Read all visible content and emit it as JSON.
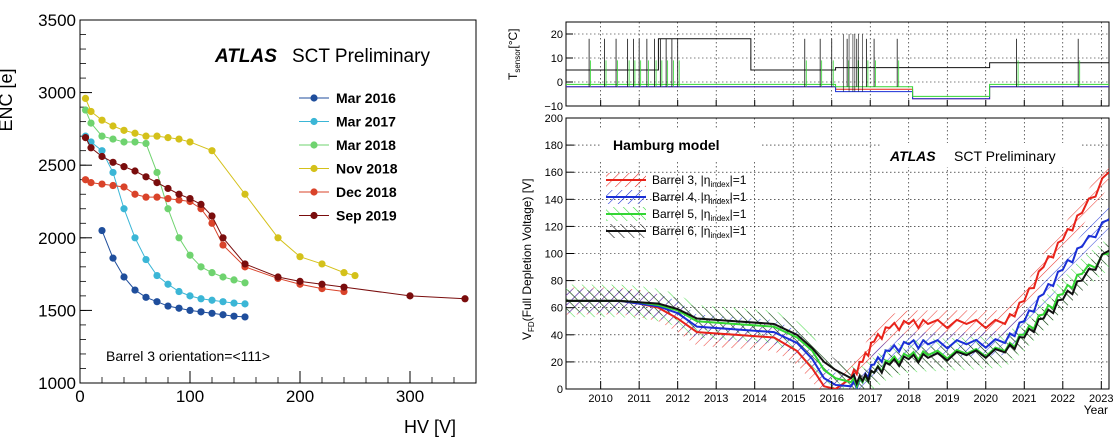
{
  "left": {
    "atlas": "ATLAS",
    "label": "SCT Preliminary",
    "ylabel": "ENC [e]",
    "xlabel": "HV [V]",
    "note": "Barrel 3 orientation=<111>",
    "yticks": [
      "1000",
      "1500",
      "2000",
      "2500",
      "3000",
      "3500"
    ],
    "xticks": [
      "0",
      "100",
      "200",
      "300"
    ]
  },
  "right": {
    "atlas": "ATLAS",
    "label": "SCT Preliminary",
    "model_title": "Hamburg model",
    "top_ylabel_main": "T",
    "top_ylabel_sub": "sensor",
    "top_ylabel_unit": "[°C]",
    "bottom_ylabel_main": "V",
    "bottom_ylabel_sub": "FD",
    "bottom_ylabel_rest": "(Full Depletion Voltage) [V]",
    "xlabel": "Year",
    "top_yticks": [
      "−10",
      "0",
      "10",
      "20"
    ],
    "bottom_yticks": [
      "0",
      "20",
      "40",
      "60",
      "80",
      "100",
      "120",
      "140",
      "160",
      "180",
      "200"
    ],
    "xticks": [
      "2010",
      "2011",
      "2012",
      "2013",
      "2014",
      "2015",
      "2016",
      "2017",
      "2018",
      "2019",
      "2020",
      "2021",
      "2022",
      "2023"
    ],
    "legend": [
      {
        "pre": "Barrel 3, |η",
        "sub": "index",
        "post": "|=1"
      },
      {
        "pre": "Barrel 4, |η",
        "sub": "index",
        "post": "|=1"
      },
      {
        "pre": "Barrel 5, |η",
        "sub": "index",
        "post": "|=1"
      },
      {
        "pre": "Barrel 6, |η",
        "sub": "index",
        "post": "|=1"
      }
    ]
  },
  "chart_data": [
    {
      "type": "line",
      "title": "ATLAS SCT Preliminary",
      "xlabel": "HV [V]",
      "ylabel": "ENC [e]",
      "xlim": [
        0,
        360
      ],
      "ylim": [
        1000,
        3500
      ],
      "annotations": [
        "Barrel 3 orientation=<111>"
      ],
      "legend_position": "upper-right",
      "series": [
        {
          "name": "Mar 2016",
          "color": "#1f4e9c",
          "x": [
            20,
            30,
            40,
            50,
            60,
            70,
            80,
            90,
            100,
            110,
            120,
            130,
            140,
            150
          ],
          "y": [
            2050,
            1860,
            1730,
            1640,
            1590,
            1560,
            1530,
            1515,
            1500,
            1490,
            1480,
            1470,
            1460,
            1455
          ]
        },
        {
          "name": "Mar 2017",
          "color": "#3bb6d6",
          "x": [
            5,
            10,
            20,
            30,
            40,
            50,
            60,
            70,
            80,
            90,
            100,
            110,
            120,
            130,
            140,
            150
          ],
          "y": [
            2700,
            2660,
            2600,
            2450,
            2200,
            2000,
            1850,
            1740,
            1680,
            1630,
            1600,
            1580,
            1570,
            1560,
            1550,
            1545
          ]
        },
        {
          "name": "Mar 2018",
          "color": "#6fd36f",
          "x": [
            5,
            10,
            20,
            30,
            40,
            50,
            60,
            70,
            80,
            90,
            100,
            110,
            120,
            130,
            140,
            150
          ],
          "y": [
            2880,
            2790,
            2700,
            2680,
            2660,
            2660,
            2650,
            2450,
            2200,
            2000,
            1880,
            1800,
            1760,
            1730,
            1710,
            1690
          ]
        },
        {
          "name": "Nov 2018",
          "color": "#d4c11a",
          "x": [
            5,
            10,
            20,
            30,
            40,
            50,
            60,
            70,
            80,
            90,
            100,
            120,
            150,
            180,
            200,
            220,
            240,
            250
          ],
          "y": [
            2960,
            2870,
            2810,
            2770,
            2740,
            2720,
            2700,
            2700,
            2690,
            2680,
            2660,
            2600,
            2300,
            2000,
            1870,
            1820,
            1760,
            1740
          ]
        },
        {
          "name": "Dec 2018",
          "color": "#d9432a",
          "x": [
            5,
            10,
            20,
            30,
            40,
            50,
            60,
            70,
            80,
            90,
            100,
            110,
            120,
            130,
            150,
            180,
            200,
            220,
            240
          ],
          "y": [
            2400,
            2380,
            2370,
            2360,
            2350,
            2300,
            2280,
            2280,
            2270,
            2260,
            2250,
            2200,
            2100,
            1950,
            1800,
            1720,
            1680,
            1650,
            1630
          ]
        },
        {
          "name": "Sep 2019",
          "color": "#7a0d0d",
          "x": [
            5,
            10,
            20,
            30,
            40,
            50,
            60,
            70,
            80,
            90,
            100,
            110,
            120,
            130,
            150,
            180,
            200,
            220,
            240,
            300,
            350
          ],
          "y": [
            2690,
            2620,
            2560,
            2520,
            2490,
            2460,
            2420,
            2380,
            2340,
            2300,
            2270,
            2230,
            2150,
            2000,
            1820,
            1730,
            1700,
            1680,
            1660,
            1600,
            1580
          ]
        }
      ]
    },
    {
      "type": "line",
      "title": "ATLAS SCT Preliminary",
      "subtitle": "Hamburg model",
      "xlabel": "Year",
      "ylabel": "V_FD (Full Depletion Voltage) [V]",
      "xlim": [
        2009.6,
        2023.7
      ],
      "ylim": [
        0,
        200
      ],
      "grid": true,
      "legend_position": "upper-left",
      "series": [
        {
          "name": "Barrel 3, |η_index|=1",
          "color": "#e8231a",
          "x": [
            2009.6,
            2011,
            2011.5,
            2012,
            2012.5,
            2013,
            2014,
            2015,
            2015.6,
            2016.0,
            2016.3,
            2016.6,
            2017.0,
            2017.3,
            2017.6,
            2018.0,
            2018.5,
            2019,
            2020,
            2021,
            2021.5,
            2022,
            2022.5,
            2023,
            2023.7
          ],
          "y": [
            65,
            65,
            63,
            60,
            52,
            42,
            40,
            38,
            28,
            15,
            2,
            0,
            8,
            20,
            35,
            45,
            48,
            48,
            48,
            48,
            65,
            90,
            110,
            130,
            160
          ]
        },
        {
          "name": "Barrel 4, |η_index|=1",
          "color": "#1a2fd6",
          "x": [
            2009.6,
            2011,
            2011.5,
            2012,
            2012.5,
            2013,
            2014,
            2015,
            2015.6,
            2016.0,
            2016.3,
            2016.6,
            2017.0,
            2017.3,
            2017.6,
            2018.0,
            2018.5,
            2019,
            2020,
            2021,
            2021.5,
            2022,
            2022.5,
            2023,
            2023.7
          ],
          "y": [
            65,
            65,
            63,
            61,
            56,
            46,
            44,
            42,
            34,
            22,
            8,
            3,
            2,
            5,
            18,
            28,
            33,
            33,
            33,
            34,
            50,
            70,
            88,
            105,
            125
          ]
        },
        {
          "name": "Barrel 5, |η_index|=1",
          "color": "#33d633",
          "x": [
            2009.6,
            2011,
            2011.5,
            2012,
            2012.5,
            2013,
            2014,
            2015,
            2015.6,
            2016.0,
            2016.3,
            2016.6,
            2017.0,
            2017.3,
            2017.6,
            2018.0,
            2018.5,
            2019,
            2020,
            2021,
            2021.5,
            2022,
            2022.5,
            2023,
            2023.7
          ],
          "y": [
            65,
            65,
            64,
            62,
            58,
            50,
            48,
            46,
            38,
            28,
            14,
            8,
            5,
            5,
            12,
            20,
            24,
            25,
            26,
            28,
            40,
            55,
            70,
            85,
            100
          ]
        },
        {
          "name": "Barrel 6, |η_index|=1",
          "color": "#111111",
          "x": [
            2009.6,
            2011,
            2011.5,
            2012,
            2012.5,
            2013,
            2014,
            2015,
            2015.6,
            2016.0,
            2016.3,
            2016.6,
            2017.0,
            2017.3,
            2017.6,
            2018.0,
            2018.5,
            2019,
            2020,
            2021,
            2021.5,
            2022,
            2022.5,
            2023,
            2023.7
          ],
          "y": [
            65,
            65,
            64,
            63,
            59,
            52,
            50,
            48,
            40,
            30,
            20,
            14,
            8,
            6,
            12,
            18,
            22,
            23,
            25,
            27,
            38,
            52,
            66,
            80,
            102
          ]
        }
      ]
    },
    {
      "type": "line",
      "xlabel": "Year",
      "ylabel": "T_sensor [°C]",
      "xlim": [
        2009.6,
        2023.7
      ],
      "ylim": [
        -10,
        25
      ],
      "grid": true,
      "series": [
        {
          "name": "Barrel 3",
          "color": "#e8231a",
          "x": [
            2009.6,
            2012.0,
            2012.0,
            2016.6,
            2016.6,
            2018.6,
            2018.6,
            2020.6,
            2020.6,
            2023.7
          ],
          "y": [
            -2,
            -2,
            -2,
            -2,
            -3,
            -3,
            -7,
            -7,
            -2,
            -2
          ]
        },
        {
          "name": "Barrel 4",
          "color": "#1a2fd6",
          "x": [
            2009.6,
            2012.0,
            2012.0,
            2016.6,
            2016.6,
            2018.6,
            2018.6,
            2020.6,
            2020.6,
            2023.7
          ],
          "y": [
            -2,
            -2,
            -2,
            -2,
            -4,
            -4,
            -7,
            -7,
            -2,
            -2
          ]
        },
        {
          "name": "Barrel 5",
          "color": "#33d633",
          "x": [
            2009.6,
            2012.0,
            2012.0,
            2016.6,
            2016.6,
            2018.6,
            2018.6,
            2020.6,
            2020.6,
            2023.7
          ],
          "y": [
            -1,
            -1,
            -1,
            -1,
            -2,
            -2,
            -6,
            -6,
            -1,
            -1
          ]
        },
        {
          "name": "Barrel 6",
          "color": "#111111",
          "x": [
            2009.6,
            2012.0,
            2012.0,
            2014.4,
            2014.4,
            2016.6,
            2016.6,
            2018.6,
            2018.6,
            2020.6,
            2020.6,
            2023.7
          ],
          "y": [
            5,
            5,
            18,
            18,
            5,
            5,
            6,
            6,
            6,
            6,
            8,
            8
          ]
        }
      ]
    }
  ]
}
